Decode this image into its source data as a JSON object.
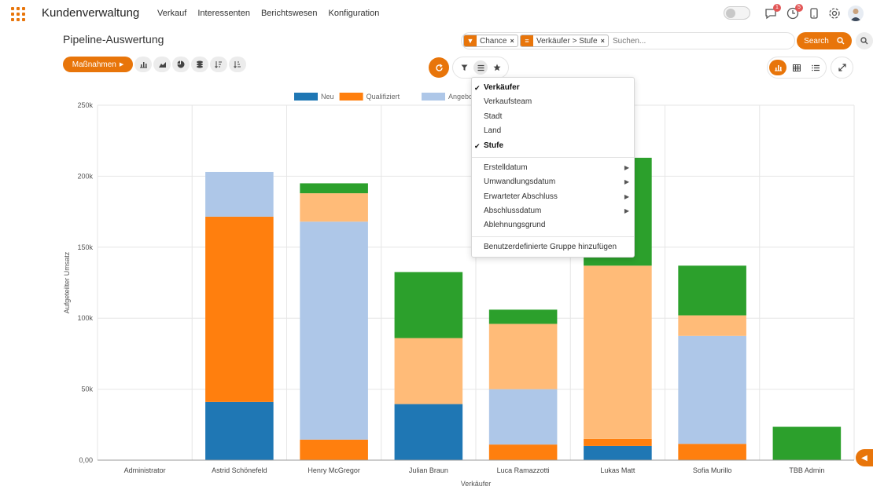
{
  "app": {
    "title": "Kundenverwaltung",
    "menu": [
      "Verkauf",
      "Interessenten",
      "Berichtswesen",
      "Konfiguration"
    ],
    "messages_count": "1",
    "activities_count": "5"
  },
  "page": {
    "title": "Pipeline-Auswertung"
  },
  "search": {
    "facets": [
      {
        "label": "Chance",
        "icon": "filter-icon"
      },
      {
        "label": "Verkäufer > Stufe",
        "icon": "group-by-icon"
      }
    ],
    "placeholder": "Suchen...",
    "button_label": "Search"
  },
  "toolbar": {
    "actions_label": "Maßnahmen"
  },
  "group_by_menu": {
    "items": [
      {
        "label": "Verkäufer",
        "checked": true
      },
      {
        "label": "Verkaufsteam",
        "checked": false
      },
      {
        "label": "Stadt",
        "checked": false
      },
      {
        "label": "Land",
        "checked": false
      },
      {
        "label": "Stufe",
        "checked": true
      }
    ],
    "date_items": [
      "Erstelldatum",
      "Umwandlungsdatum",
      "Erwarteter Abschluss",
      "Abschlussdatum"
    ],
    "other_item": "Ablehnungsgrund",
    "custom_label": "Benutzerdefinierte Gruppe hinzufügen"
  },
  "colors": {
    "accent": "#e8750a"
  },
  "chart_data": {
    "type": "bar",
    "stacked": true,
    "categories": [
      "Administrator",
      "Astrid Schönefeld",
      "Henry McGregor",
      "Julian Braun",
      "Luca Ramazzotti",
      "Lukas Matt",
      "Sofia Murillo",
      "TBB Admin"
    ],
    "series": [
      {
        "name": "Neu",
        "color": "#1f77b4",
        "values": [
          0,
          41000,
          0,
          39500,
          0,
          10000,
          0,
          0
        ]
      },
      {
        "name": "Qualifiziert",
        "color": "#ff7f0e",
        "values": [
          0,
          130500,
          14500,
          0,
          11000,
          5000,
          11500,
          0
        ]
      },
      {
        "name": "Angebot",
        "color": "#aec7e8",
        "values": [
          0,
          31500,
          153500,
          0,
          39000,
          0,
          76000,
          0
        ]
      },
      {
        "name": "",
        "color": "#ffbb78",
        "values": [
          0,
          0,
          20000,
          46500,
          46000,
          122000,
          14500,
          0
        ]
      },
      {
        "name": "",
        "color": "#2ca02c",
        "values": [
          0,
          0,
          7000,
          46500,
          10000,
          76000,
          35000,
          23500
        ]
      }
    ],
    "legend_position": "top",
    "xlabel": "Verkäufer",
    "ylabel": "Aufgeteilter Umsatz",
    "ylim": [
      0,
      250000
    ],
    "yticks": [
      "0,00",
      "50k",
      "100k",
      "150k",
      "200k",
      "250k"
    ],
    "grid": true
  }
}
